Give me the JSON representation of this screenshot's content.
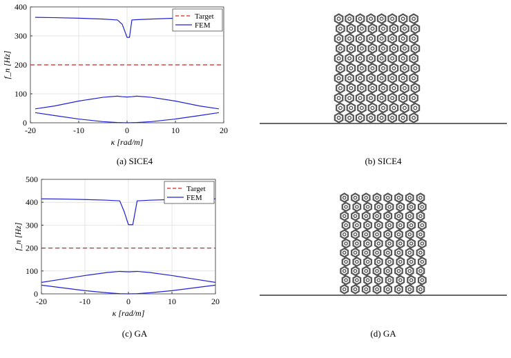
{
  "figures": [
    {
      "id": "a",
      "caption": "(a) SICE4",
      "chart_data": {
        "type": "line",
        "xlabel": "κ [rad/m]",
        "ylabel": "f_n [Hz]",
        "xlim": [
          -20,
          20
        ],
        "ylim": [
          0,
          400
        ],
        "xticks": [
          "-20",
          "-10",
          "0",
          "10",
          "20"
        ],
        "yticks": [
          "0",
          "100",
          "200",
          "300",
          "400"
        ],
        "grid": true,
        "legend_position": "top-right",
        "legend": [
          "Target",
          "FEM"
        ],
        "series": [
          {
            "name": "Target",
            "style": "dashed",
            "color": "#d62020",
            "x": [
              -20,
              20
            ],
            "y": [
              200,
              200
            ]
          },
          {
            "name": "FEM",
            "style": "solid",
            "color": "#1f1fd6",
            "branches": [
              {
                "x": [
                  -19,
                  -15,
                  -10,
                  -5,
                  -2,
                  -1,
                  0,
                  0.5,
                  1,
                  2,
                  5,
                  10,
                  15,
                  19
                ],
                "y": [
                  364,
                  363,
                  361,
                  358,
                  355,
                  340,
                  295,
                  295,
                  355,
                  356,
                  358,
                  361,
                  363,
                  364
                ]
              },
              {
                "x": [
                  -19,
                  -15,
                  -10,
                  -5,
                  -2,
                  -1,
                  0,
                  1,
                  2,
                  5,
                  10,
                  15,
                  19
                ],
                "y": [
                  48,
                  58,
                  75,
                  88,
                  92,
                  90,
                  89,
                  90,
                  92,
                  88,
                  75,
                  58,
                  48
                ]
              },
              {
                "x": [
                  -19,
                  -15,
                  -10,
                  -5,
                  -2,
                  0,
                  2,
                  5,
                  10,
                  15,
                  19
                ],
                "y": [
                  35,
                  25,
                  13,
                  4,
                  1,
                  0,
                  1,
                  4,
                  13,
                  25,
                  35
                ]
              }
            ]
          }
        ]
      }
    },
    {
      "id": "b",
      "caption": "(b) SICE4",
      "lattice": {
        "cols": 8,
        "rows": 11
      }
    },
    {
      "id": "c",
      "caption": "(c) GA",
      "chart_data": {
        "type": "line",
        "xlabel": "κ [rad/m]",
        "ylabel": "f_n [Hz]",
        "xlim": [
          -20,
          20
        ],
        "ylim": [
          0,
          500
        ],
        "xticks": [
          "-20",
          "-10",
          "0",
          "10",
          "20"
        ],
        "yticks": [
          "0",
          "100",
          "200",
          "300",
          "400",
          "500"
        ],
        "grid": true,
        "legend_position": "top-right",
        "legend": [
          "Target",
          "FEM"
        ],
        "series": [
          {
            "name": "Target",
            "style": "dashed",
            "color": "#d62020",
            "x": [
              -20,
              20
            ],
            "y": [
              200,
              200
            ]
          },
          {
            "name": "FEM",
            "style": "solid",
            "color": "#1f1fd6",
            "branches": [
              {
                "x": [
                  -20,
                  -15,
                  -10,
                  -5,
                  -2,
                  -1,
                  0,
                  1,
                  2,
                  5,
                  10,
                  15,
                  20
                ],
                "y": [
                  415,
                  414,
                  412,
                  409,
                  406,
                  360,
                  302,
                  302,
                  406,
                  409,
                  412,
                  414,
                  415
                ]
              },
              {
                "x": [
                  -20,
                  -15,
                  -10,
                  -5,
                  -2,
                  0,
                  2,
                  5,
                  10,
                  15,
                  20
                ],
                "y": [
                  50,
                  65,
                  80,
                  93,
                  98,
                  96,
                  98,
                  93,
                  80,
                  65,
                  50
                ]
              },
              {
                "x": [
                  -20,
                  -15,
                  -10,
                  -5,
                  -2,
                  0,
                  2,
                  5,
                  10,
                  15,
                  20
                ],
                "y": [
                  38,
                  26,
                  14,
                  5,
                  1,
                  0,
                  1,
                  5,
                  14,
                  26,
                  38
                ]
              }
            ]
          }
        ]
      }
    },
    {
      "id": "d",
      "caption": "(d) GA",
      "lattice": {
        "cols": 8,
        "rows": 11
      }
    }
  ]
}
